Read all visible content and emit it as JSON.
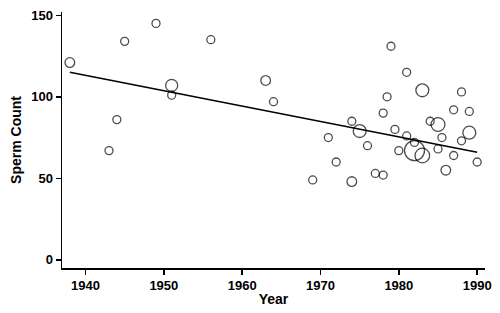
{
  "chart_data": {
    "type": "scatter",
    "x_label": "Year",
    "y_label": "Sperm Count",
    "xlim": [
      1937,
      1991
    ],
    "xticks": [
      1940,
      1950,
      1960,
      1970,
      1980,
      1990
    ],
    "ylim": [
      -5,
      152
    ],
    "yticks": [
      0,
      50,
      100,
      150
    ],
    "grid": false,
    "color": "#000000",
    "series": [
      {
        "type": "scatter",
        "marker": "open_circle",
        "color": "#000000",
        "x": [
          1938,
          1943,
          1944,
          1945,
          1949,
          1951,
          1951,
          1956,
          1963,
          1964,
          1969,
          1971,
          1972,
          1974,
          1974,
          1975,
          1976,
          1977,
          1978,
          1978,
          1978.5,
          1979,
          1979.5,
          1980,
          1981,
          1981,
          1982,
          1982,
          1983,
          1983,
          1984,
          1985,
          1985,
          1985.5,
          1986,
          1987,
          1987,
          1988,
          1988,
          1989,
          1989,
          1990
        ],
        "values": [
          121,
          67,
          86,
          134,
          145,
          101,
          107,
          135,
          110,
          97,
          49,
          75,
          60,
          85,
          48,
          79,
          70,
          53,
          90,
          52,
          100,
          131,
          80,
          67,
          115,
          76,
          67,
          72,
          64,
          104,
          85,
          83,
          68,
          75,
          55,
          64,
          92,
          103,
          73,
          78,
          91,
          60
        ],
        "sizes": [
          2,
          1,
          1,
          1,
          1,
          1,
          4,
          1,
          2,
          1,
          1,
          1,
          1,
          1,
          2,
          5,
          1,
          1,
          1,
          1,
          1,
          1,
          1,
          1,
          1,
          1,
          16,
          1,
          7,
          5,
          1,
          6,
          1,
          1,
          2,
          1,
          1,
          1,
          1,
          5,
          1,
          1
        ]
      },
      {
        "type": "line",
        "line_style": "solid",
        "color": "#000000",
        "x": [
          1938,
          1990
        ],
        "values": [
          115,
          66
        ]
      }
    ]
  }
}
